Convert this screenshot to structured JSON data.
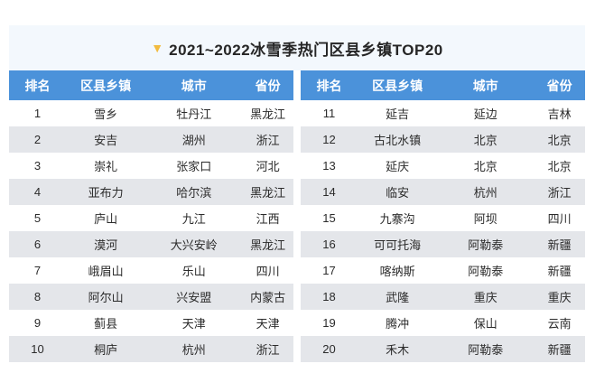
{
  "title": {
    "text": "2021~2022冰雪季热门区县乡镇TOP20",
    "marker": "▼"
  },
  "chart_data": {
    "type": "table",
    "title": "2021~2022冰雪季热门区县乡镇TOP20",
    "columns": [
      "排名",
      "区县乡镇",
      "城市",
      "省份"
    ],
    "tables": [
      {
        "rows": [
          [
            "1",
            "雪乡",
            "牡丹江",
            "黑龙江"
          ],
          [
            "2",
            "安吉",
            "湖州",
            "浙江"
          ],
          [
            "3",
            "崇礼",
            "张家口",
            "河北"
          ],
          [
            "4",
            "亚布力",
            "哈尔滨",
            "黑龙江"
          ],
          [
            "5",
            "庐山",
            "九江",
            "江西"
          ],
          [
            "6",
            "漠河",
            "大兴安岭",
            "黑龙江"
          ],
          [
            "7",
            "峨眉山",
            "乐山",
            "四川"
          ],
          [
            "8",
            "阿尔山",
            "兴安盟",
            "内蒙古"
          ],
          [
            "9",
            "蓟县",
            "天津",
            "天津"
          ],
          [
            "10",
            "桐庐",
            "杭州",
            "浙江"
          ]
        ]
      },
      {
        "rows": [
          [
            "11",
            "延吉",
            "延边",
            "吉林"
          ],
          [
            "12",
            "古北水镇",
            "北京",
            "北京"
          ],
          [
            "13",
            "延庆",
            "北京",
            "北京"
          ],
          [
            "14",
            "临安",
            "杭州",
            "浙江"
          ],
          [
            "15",
            "九寨沟",
            "阿坝",
            "四川"
          ],
          [
            "16",
            "可可托海",
            "阿勒泰",
            "新疆"
          ],
          [
            "17",
            "喀纳斯",
            "阿勒泰",
            "新疆"
          ],
          [
            "18",
            "武隆",
            "重庆",
            "重庆"
          ],
          [
            "19",
            "腾冲",
            "保山",
            "云南"
          ],
          [
            "20",
            "禾木",
            "阿勒泰",
            "新疆"
          ]
        ]
      }
    ]
  },
  "colors": {
    "header_bg": "#4b92da",
    "header_text": "#ffffff",
    "row_alt_bg": "#e4e6ea",
    "title_band_bg": "#f3f8fd",
    "marker_color": "#f2bb40",
    "cell_text": "#2b2b2b",
    "page_bg": "#ffffff"
  }
}
